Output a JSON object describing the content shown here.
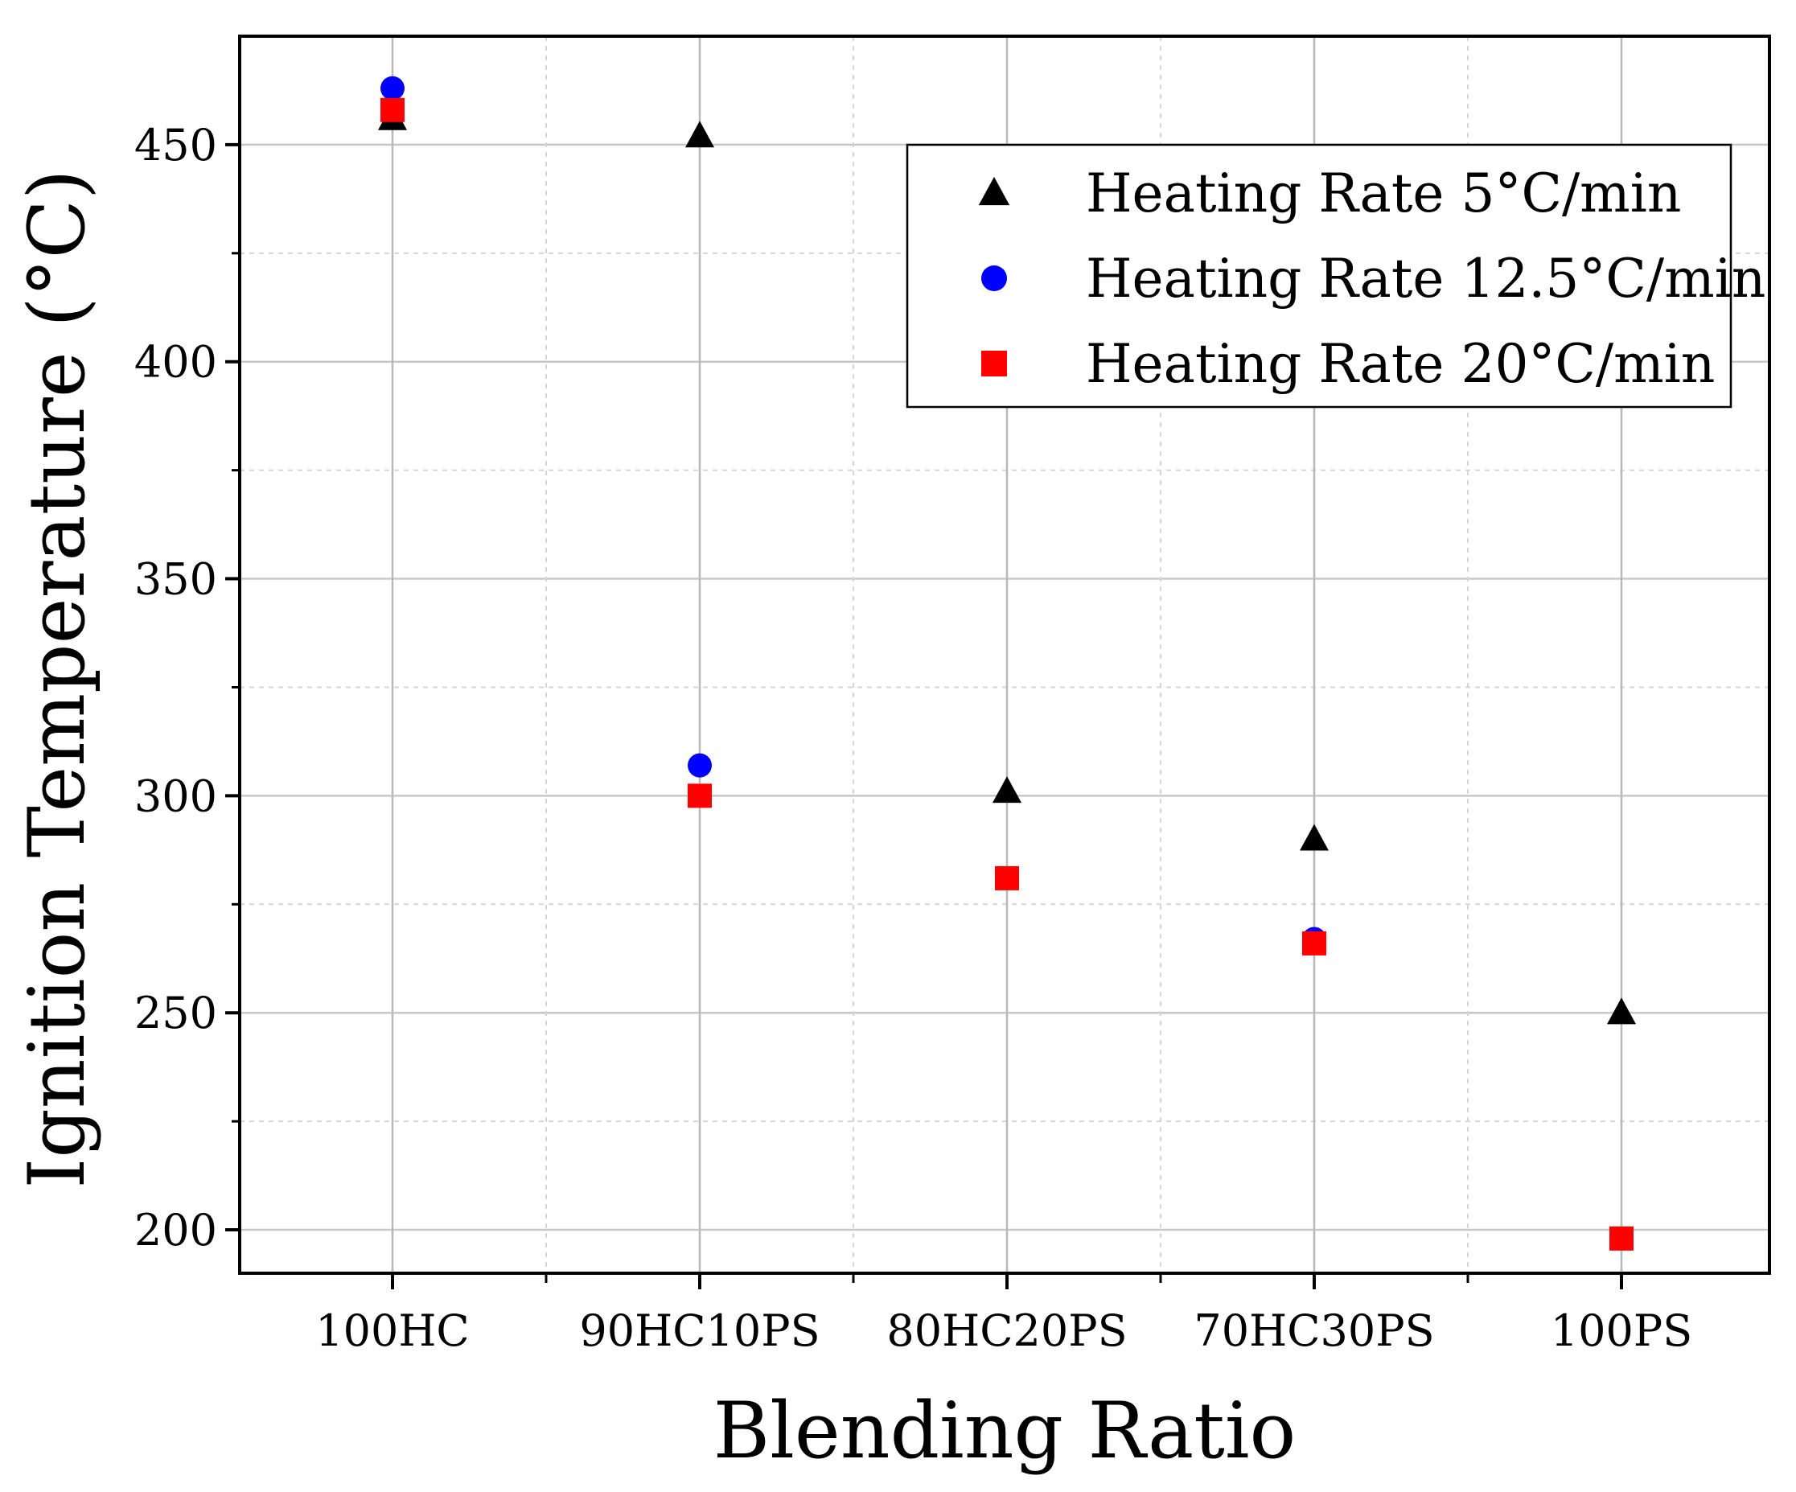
{
  "chart_data": {
    "type": "scatter",
    "title": "",
    "xlabel": "Blending Ratio",
    "ylabel": "Ignition Temperature (°C)",
    "categories": [
      "100HC",
      "90HC10PS",
      "80HC20PS",
      "70HC30PS",
      "100PS"
    ],
    "ylim": [
      190,
      475
    ],
    "yticks": [
      200,
      250,
      300,
      350,
      400,
      450
    ],
    "grid": true,
    "legend_position": "top-right",
    "series": [
      {
        "name": "Heating Rate 5°C/min",
        "marker": "triangle",
        "color": "#000000",
        "values": [
          456,
          452,
          301,
          290,
          250
        ]
      },
      {
        "name": "Heating Rate 12.5°C/min",
        "marker": "circle",
        "color": "#0000ff",
        "values": [
          463,
          307,
          281,
          267,
          null
        ]
      },
      {
        "name": "Heating Rate 20°C/min",
        "marker": "square",
        "color": "#ff0000",
        "values": [
          458,
          300,
          281,
          266,
          198
        ]
      }
    ]
  }
}
